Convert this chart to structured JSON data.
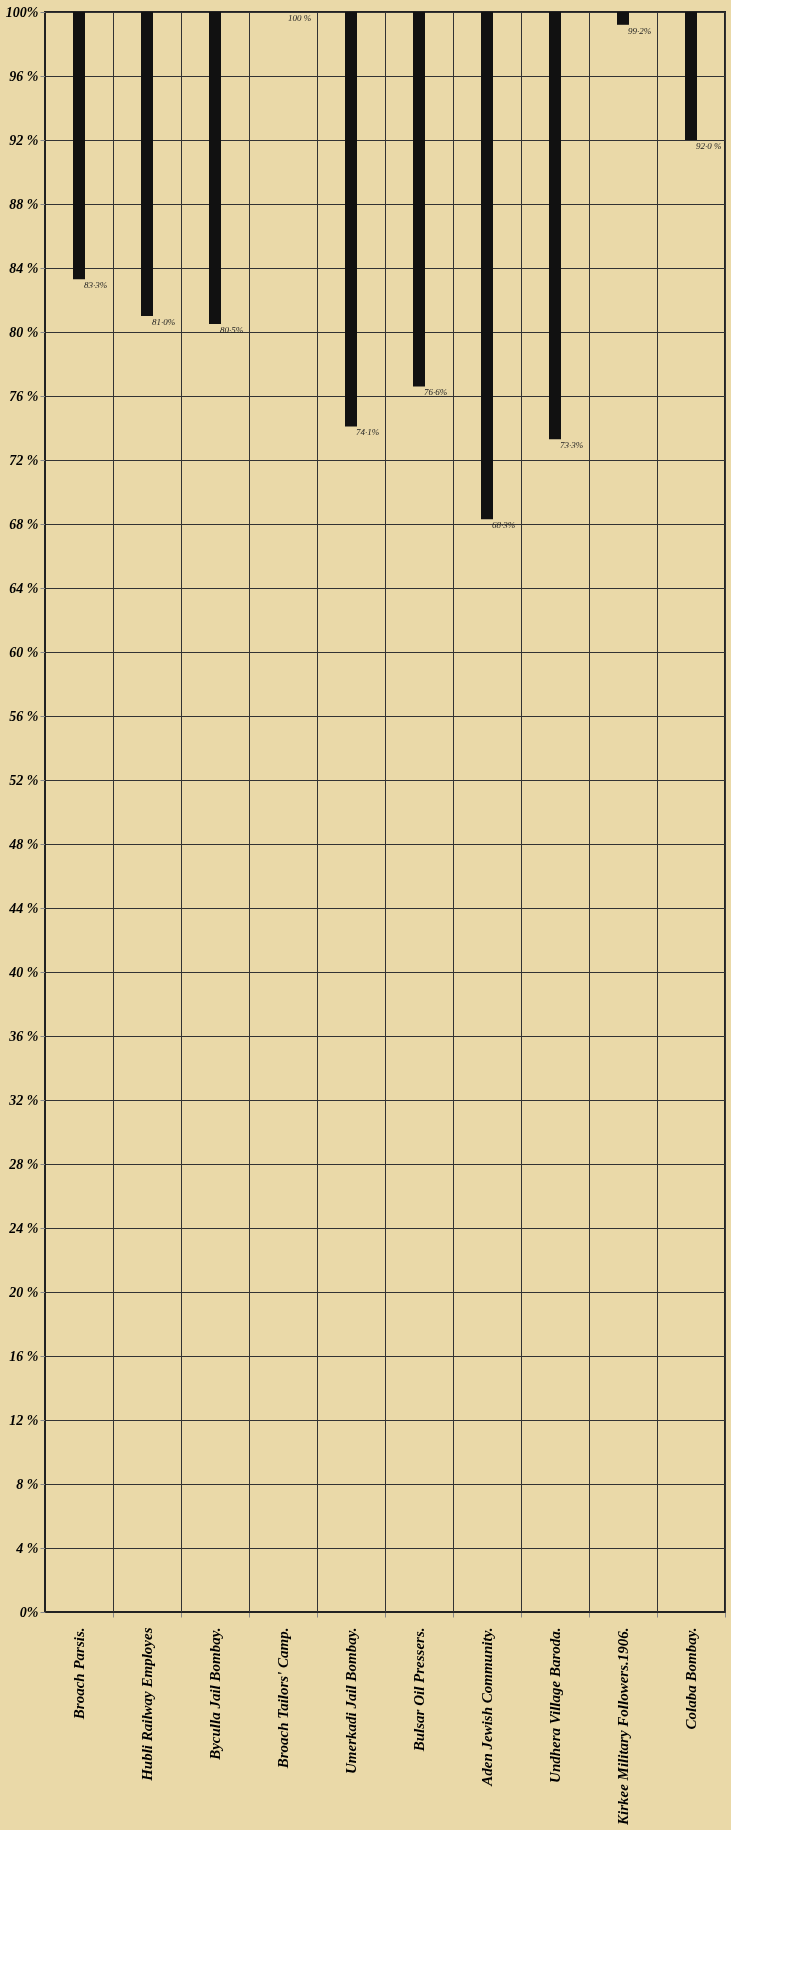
{
  "chart_data": {
    "type": "bar",
    "categories": [
      "Broach Parsis.",
      "Hubli Railway Employes",
      "Byculla Jail Bombay.",
      "Broach Tailors' Camp.",
      "Umerkadi Jail Bombay.",
      "Bulsar Oil Pressers.",
      "Aden Jewish Community.",
      "Undhera Village Baroda.",
      "Kirkee Military Followers.1906.",
      "Colaba Bombay."
    ],
    "base": [
      83.3,
      81.0,
      80.5,
      null,
      74.1,
      76.6,
      68.3,
      73.3,
      99.2,
      92.0
    ],
    "values": [
      16.7,
      19.0,
      19.5,
      null,
      25.9,
      23.4,
      31.7,
      26.7,
      0.8,
      8.0
    ],
    "annotations": [
      {
        "text": "83·3%",
        "x": "Broach Parsis.",
        "y": 83.3
      },
      {
        "text": "81·0%",
        "x": "Hubli Railway Employes",
        "y": 81.0
      },
      {
        "text": "80·5%",
        "x": "Byculla Jail Bombay.",
        "y": 80.5
      },
      "100 %",
      {
        "text": "74·1%",
        "x": "Umerkadi Jail Bombay.",
        "y": 74.1
      },
      {
        "text": "76·6%",
        "x": "Bulsar Oil Pressers.",
        "y": 76.6
      },
      {
        "text": "68·3%",
        "x": "Aden Jewish Community.",
        "y": 68.3
      },
      {
        "text": "73·3%",
        "x": "Undhera Village Baroda.",
        "y": 73.3
      },
      {
        "text": "99·2%",
        "x": "Kirkee Military Followers.1906.",
        "y": 99.2
      },
      {
        "text": "92·0 %",
        "x": "Colaba Bombay.",
        "y": 92.0
      }
    ],
    "color": "#111111",
    "ylim": [
      0,
      100
    ],
    "yticks": [
      {
        "value": 0,
        "label": "0%"
      },
      {
        "value": 4,
        "label": "4 %"
      },
      {
        "value": 8,
        "label": "8 %"
      },
      {
        "value": 12,
        "label": "12 %"
      },
      {
        "value": 16,
        "label": "16 %"
      },
      {
        "value": 20,
        "label": "20 %"
      },
      {
        "value": 24,
        "label": "24 %"
      },
      {
        "value": 28,
        "label": "28 %"
      },
      {
        "value": 32,
        "label": "32 %"
      },
      {
        "value": 36,
        "label": "36 %"
      },
      {
        "value": 40,
        "label": "40 %"
      },
      {
        "value": 44,
        "label": "44 %"
      },
      {
        "value": 48,
        "label": "48 %"
      },
      {
        "value": 52,
        "label": "52 %"
      },
      {
        "value": 56,
        "label": "56 %"
      },
      {
        "value": 60,
        "label": "60 %"
      },
      {
        "value": 64,
        "label": "64 %"
      },
      {
        "value": 68,
        "label": "68 %"
      },
      {
        "value": 72,
        "label": "72 %"
      },
      {
        "value": 76,
        "label": "76 %"
      },
      {
        "value": 80,
        "label": "80 %"
      },
      {
        "value": 84,
        "label": "84 %"
      },
      {
        "value": 88,
        "label": "88 %"
      },
      {
        "value": 92,
        "label": "92 %"
      },
      {
        "value": 96,
        "label": "96 %"
      },
      {
        "value": 100,
        "label": "100%"
      }
    ],
    "grid": true
  }
}
